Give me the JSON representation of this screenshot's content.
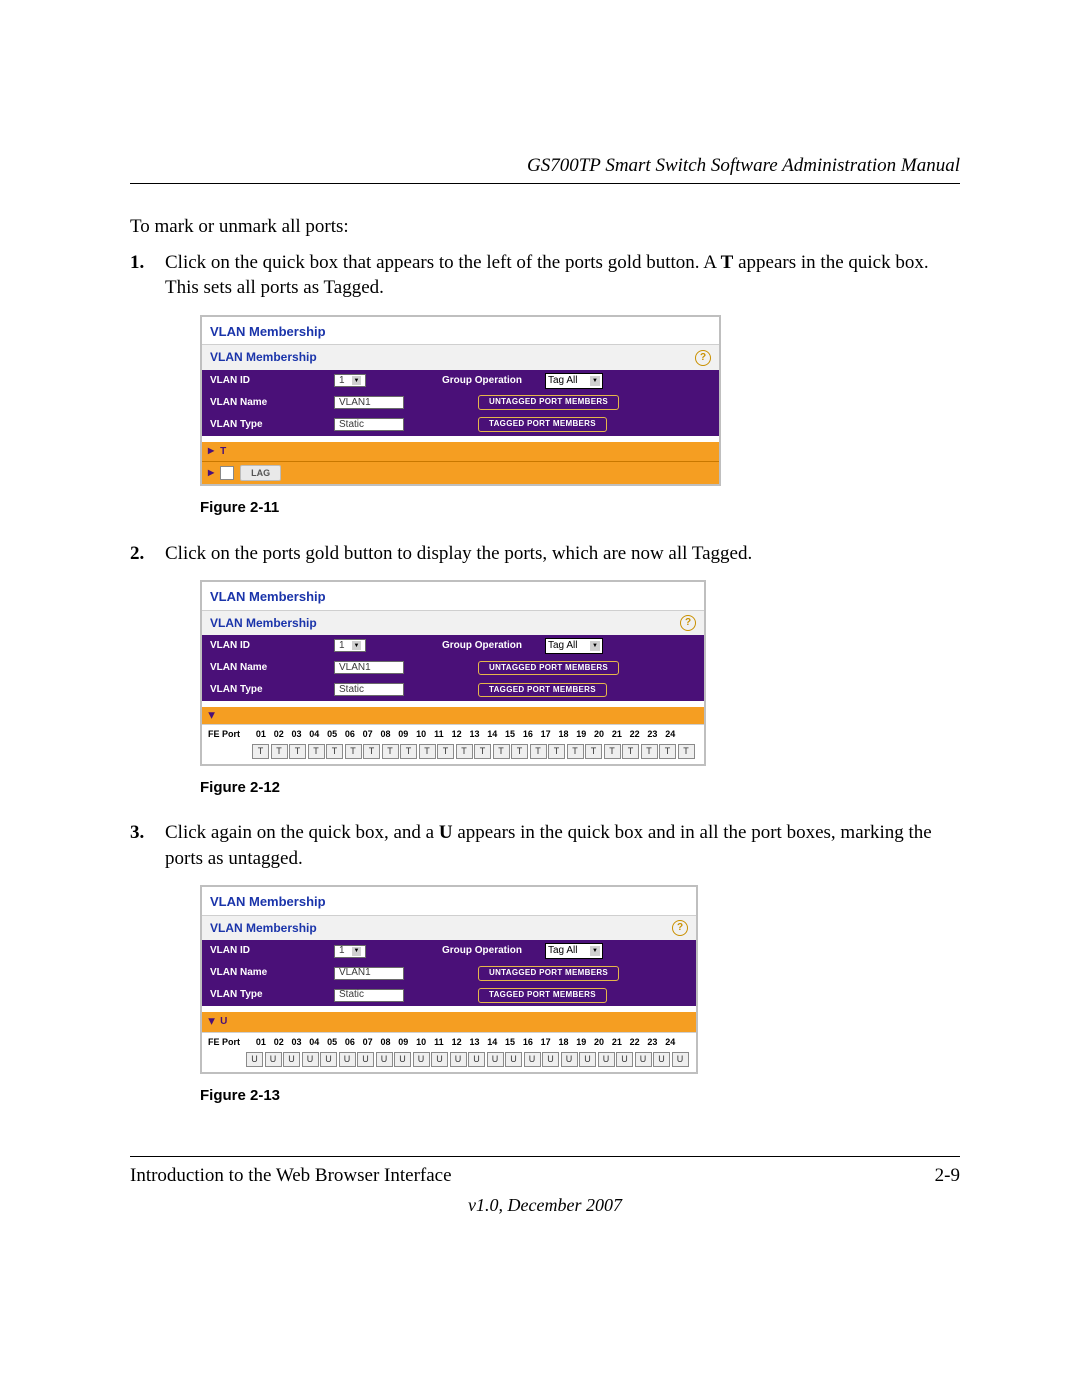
{
  "header": "GS700TP Smart Switch Software Administration Manual",
  "intro": "To mark or unmark all ports:",
  "steps": {
    "s1a": "Click on the quick box that appears to the left of the ports gold button. A ",
    "s1b": "T",
    "s1c": " appears in the quick box. This sets all ports as Tagged.",
    "s2": "Click on the ports gold button to display the ports, which are now all Tagged.",
    "s3a": "Click again on the quick box, and a ",
    "s3b": "U",
    "s3c": " appears in the quick box and in all the port boxes, marking the ports as untagged."
  },
  "figcap": {
    "f1": "Figure 2-11",
    "f2": "Figure 2-12",
    "f3": "Figure 2-13"
  },
  "panel": {
    "title": "VLAN Membership",
    "subtitle": "VLAN Membership",
    "help": "?",
    "labels": {
      "vlan_id": "VLAN ID",
      "vlan_name": "VLAN Name",
      "vlan_type": "VLAN Type",
      "group_op": "Group Operation",
      "fe_port": "FE Port"
    },
    "values": {
      "vlan_id": "1",
      "vlan_name": "VLAN1",
      "vlan_type": "Static",
      "tag_all": "Tag All"
    },
    "buttons": {
      "untagged": "UNTAGGED PORT MEMBERS",
      "tagged": "TAGGED PORT MEMBERS"
    },
    "gold": {
      "tri": "▶",
      "T": "T",
      "U": "U",
      "lag": "LAG"
    },
    "ports": [
      "01",
      "02",
      "03",
      "04",
      "05",
      "06",
      "07",
      "08",
      "09",
      "10",
      "11",
      "12",
      "13",
      "14",
      "15",
      "16",
      "17",
      "18",
      "19",
      "20",
      "21",
      "22",
      "23",
      "24"
    ],
    "cell_T": "T",
    "cell_U": "U"
  },
  "footer": {
    "left": "Introduction to the Web Browser Interface",
    "right": "2-9",
    "version": "v1.0, December 2007"
  },
  "colors": {
    "purple": "#4a1078",
    "gold": "#f59e22",
    "link": "#1a34aa"
  }
}
